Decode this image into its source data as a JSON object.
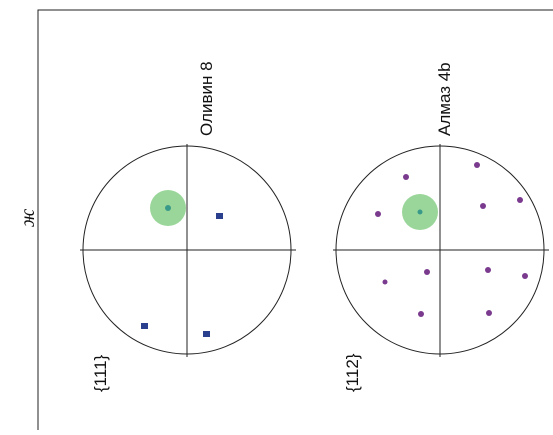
{
  "panels": [
    {
      "title": "Оливин 8",
      "plane": "{111}"
    },
    {
      "title": "Алмаз 4b",
      "plane": "{112}"
    }
  ],
  "axis_label": "ж"
}
